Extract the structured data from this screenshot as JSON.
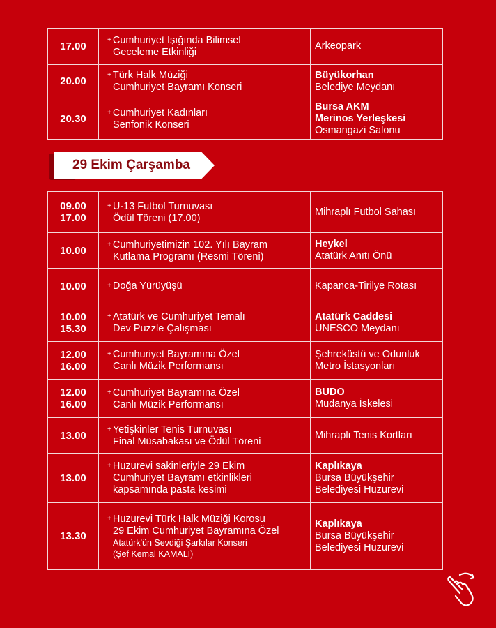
{
  "table_top": [
    {
      "time": [
        "17.00"
      ],
      "event": [
        "Cumhuriyet Işığında Bilimsel",
        "Geceleme Etkinliği"
      ],
      "location": [
        {
          "text": "Arkeopark",
          "bold": false
        }
      ]
    },
    {
      "time": [
        "20.00"
      ],
      "event": [
        "Türk Halk Müziği",
        "Cumhuriyet Bayramı Konseri"
      ],
      "location": [
        {
          "text": "Büyükorhan",
          "bold": true
        },
        {
          "text": "Belediye Meydanı",
          "bold": false
        }
      ]
    },
    {
      "time": [
        "20.30"
      ],
      "event": [
        "Cumhuriyet Kadınları",
        "Senfonik Konseri"
      ],
      "location": [
        {
          "text": "Bursa AKM",
          "bold": true
        },
        {
          "text": "Merinos Yerleşkesi",
          "bold": true
        },
        {
          "text": "Osmangazi Salonu",
          "bold": false
        }
      ]
    }
  ],
  "day_banner": "29 Ekim Çarşamba",
  "table_day": [
    {
      "time": [
        "09.00",
        "17.00"
      ],
      "event": [
        "U-13 Futbol Turnuvası",
        "Ödül Töreni (17.00)"
      ],
      "location": [
        {
          "text": "Mihraplı Futbol Sahası",
          "bold": false
        }
      ]
    },
    {
      "time": [
        "10.00"
      ],
      "event": [
        "Cumhuriyetimizin 102. Yılı Bayram",
        "Kutlama Programı (Resmi Töreni)"
      ],
      "location": [
        {
          "text": "Heykel",
          "bold": true
        },
        {
          "text": "Atatürk Anıtı Önü",
          "bold": false
        }
      ]
    },
    {
      "time": [
        "10.00"
      ],
      "event": [
        "Doğa Yürüyüşü"
      ],
      "location": [
        {
          "text": "Kapanca-Tirilye Rotası",
          "bold": false
        }
      ]
    },
    {
      "time": [
        "10.00",
        "15.30"
      ],
      "event": [
        "Atatürk ve Cumhuriyet Temalı",
        "Dev Puzzle Çalışması"
      ],
      "location": [
        {
          "text": "Atatürk Caddesi",
          "bold": true
        },
        {
          "text": "UNESCO Meydanı",
          "bold": false
        }
      ]
    },
    {
      "time": [
        "12.00",
        "16.00"
      ],
      "event": [
        "Cumhuriyet Bayramına Özel",
        "Canlı Müzik Performansı"
      ],
      "location": [
        {
          "text": "Şehreküstü ve Odunluk",
          "bold": false
        },
        {
          "text": "Metro İstasyonları",
          "bold": false
        }
      ]
    },
    {
      "time": [
        "12.00",
        "16.00"
      ],
      "event": [
        "Cumhuriyet Bayramına Özel",
        "Canlı Müzik Performansı"
      ],
      "location": [
        {
          "text": "BUDO",
          "bold": true
        },
        {
          "text": "Mudanya İskelesi",
          "bold": false
        }
      ]
    },
    {
      "time": [
        "13.00"
      ],
      "event": [
        "Yetişkinler Tenis Turnuvası",
        "Final Müsabakası ve Ödül Töreni"
      ],
      "location": [
        {
          "text": "Mihraplı Tenis Kortları",
          "bold": false
        }
      ]
    },
    {
      "time": [
        "13.00"
      ],
      "event": [
        "Huzurevi sakinleriyle 29 Ekim",
        "Cumhuriyet Bayramı etkinlikleri",
        "kapsamında pasta kesimi"
      ],
      "location": [
        {
          "text": "Kaplıkaya",
          "bold": true
        },
        {
          "text": "Bursa Büyükşehir",
          "bold": false
        },
        {
          "text": "Belediyesi Huzurevi",
          "bold": false
        }
      ]
    },
    {
      "time": [
        "13.30"
      ],
      "event": [
        "Huzurevi Türk Halk Müziği Korosu",
        "29 Ekim Cumhuriyet Bayramına Özel",
        "Atatürk'ün Sevdiği Şarkılar Konseri",
        "(Şef Kemal KAMALI)"
      ],
      "small_from": 2,
      "location": [
        {
          "text": "Kaplıkaya",
          "bold": true
        },
        {
          "text": "Bursa Büyükşehir",
          "bold": false
        },
        {
          "text": "Belediyesi Huzurevi",
          "bold": false
        }
      ]
    }
  ],
  "icons": {
    "swipe": "hand-swipe-icon"
  },
  "colors": {
    "background": "#c6000b",
    "banner_text": "#8a0a10"
  }
}
